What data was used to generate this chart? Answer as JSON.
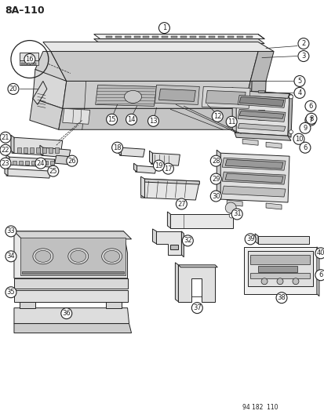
{
  "page_id": "8A-110",
  "figure_id": "94 182  110",
  "bg_color": "#ffffff",
  "lc": "#222222",
  "page_label": "8A–110",
  "bottom_ref": "94 182  110"
}
